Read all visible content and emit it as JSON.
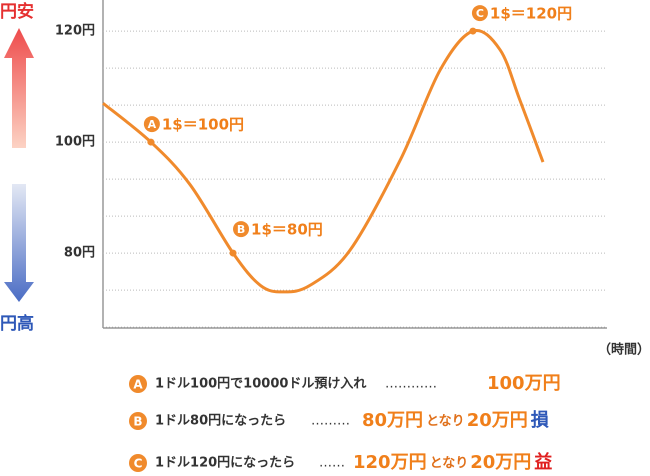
{
  "chart_data": {
    "type": "line",
    "weak_label": "円安",
    "strong_label": "円高",
    "x_label": "（時間）",
    "xlim": [
      0,
      100
    ],
    "ylim": [
      66.5,
      125.6
    ],
    "yticks": [
      {
        "value": 120,
        "label": "120円"
      },
      {
        "value": 100,
        "label": "100円"
      },
      {
        "value": 80,
        "label": "80円"
      }
    ],
    "grid": true,
    "series": [
      {
        "color": "#f08a2c",
        "x": [
          0,
          9.5,
          17.3,
          25.8,
          31.2,
          35.7,
          41.1,
          49.0,
          59.0,
          66.9,
          73.4,
          78.8,
          82.7,
          87.3
        ],
        "values": [
          107.0,
          100,
          92.3,
          80,
          74.2,
          73.0,
          74.2,
          80.5,
          96.8,
          113.0,
          120,
          116.6,
          107.6,
          96.4
        ]
      }
    ],
    "annotations": [
      {
        "letter": "A",
        "x": 9.5,
        "y": 100,
        "text": "1$＝100円"
      },
      {
        "letter": "B",
        "x": 25.8,
        "y": 80,
        "text": "1$＝80円"
      },
      {
        "letter": "C",
        "x": 73.4,
        "y": 120,
        "text": "1$＝120円"
      }
    ],
    "notes": [
      {
        "letter": "A",
        "text": "1ドル100円で10000ドル預け入れ",
        "leader": "…………",
        "amount": "100万円"
      },
      {
        "letter": "B",
        "text": "1ドル80円になったら",
        "leader": "………",
        "amount": "80万円",
        "joiner": "となり",
        "amount2": "20万円",
        "tag": "損"
      },
      {
        "letter": "C",
        "text": "1ドル120円になったら",
        "leader": "……",
        "amount": "120万円",
        "joiner": "となり",
        "amount2": "20万円",
        "tag": "益"
      }
    ]
  }
}
